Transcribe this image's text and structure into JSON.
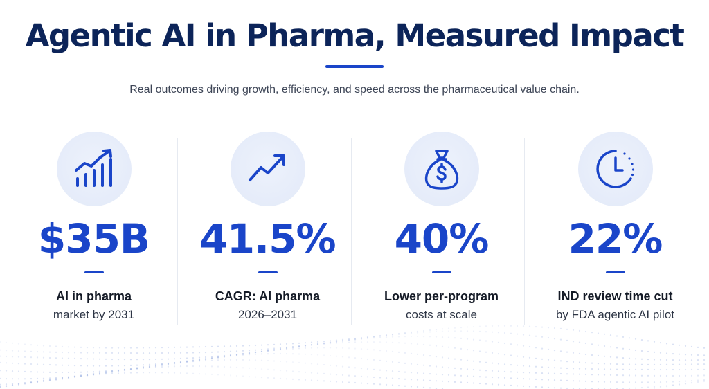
{
  "header": {
    "title": "Agentic AI in Pharma, Measured Impact",
    "subtitle": "Real outcomes driving growth, efficiency, and speed across the pharmaceutical value chain."
  },
  "colors": {
    "title": "#0c2459",
    "accent": "#1a45c9",
    "icon_bg": "#e6ecf9"
  },
  "stats": [
    {
      "icon": "bar-chart-growth-icon",
      "value": "$35B",
      "label": "AI in pharma",
      "sublabel": "market by 2031"
    },
    {
      "icon": "trend-up-arrow-icon",
      "value": "41.5%",
      "label": "CAGR: AI pharma",
      "sublabel": "2026–2031"
    },
    {
      "icon": "money-bag-icon",
      "value": "40%",
      "label": "Lower per-program",
      "sublabel": "costs at scale"
    },
    {
      "icon": "clock-icon",
      "value": "22%",
      "label": "IND review time cut",
      "sublabel": "by FDA agentic AI pilot"
    }
  ]
}
